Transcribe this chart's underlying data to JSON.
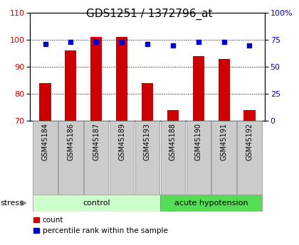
{
  "title": "GDS1251 / 1372796_at",
  "samples": [
    "GSM45184",
    "GSM45186",
    "GSM45187",
    "GSM45189",
    "GSM45193",
    "GSM45188",
    "GSM45190",
    "GSM45191",
    "GSM45192"
  ],
  "count_values": [
    84,
    96,
    101,
    101,
    84,
    74,
    94,
    93,
    74
  ],
  "percentile_values": [
    71,
    73,
    73,
    73,
    71,
    70,
    73,
    73,
    70
  ],
  "left_ylim": [
    70,
    110
  ],
  "left_yticks": [
    70,
    80,
    90,
    100,
    110
  ],
  "right_ylim": [
    0,
    100
  ],
  "right_yticks": [
    0,
    25,
    50,
    75,
    100
  ],
  "right_yticklabels": [
    "0",
    "25",
    "50",
    "75",
    "100%"
  ],
  "bar_color": "#cc0000",
  "dot_color": "#0000cc",
  "bar_width": 0.45,
  "control_label": "control",
  "acute_label": "acute hypotension",
  "stress_label": "stress",
  "control_n": 5,
  "acute_n": 4,
  "control_bg": "#ccffcc",
  "acute_bg": "#55dd55",
  "tick_bg": "#cccccc",
  "legend_count": "count",
  "legend_percentile": "percentile rank within the sample",
  "title_fontsize": 11,
  "tick_fontsize": 7,
  "ytick_fontsize": 8
}
